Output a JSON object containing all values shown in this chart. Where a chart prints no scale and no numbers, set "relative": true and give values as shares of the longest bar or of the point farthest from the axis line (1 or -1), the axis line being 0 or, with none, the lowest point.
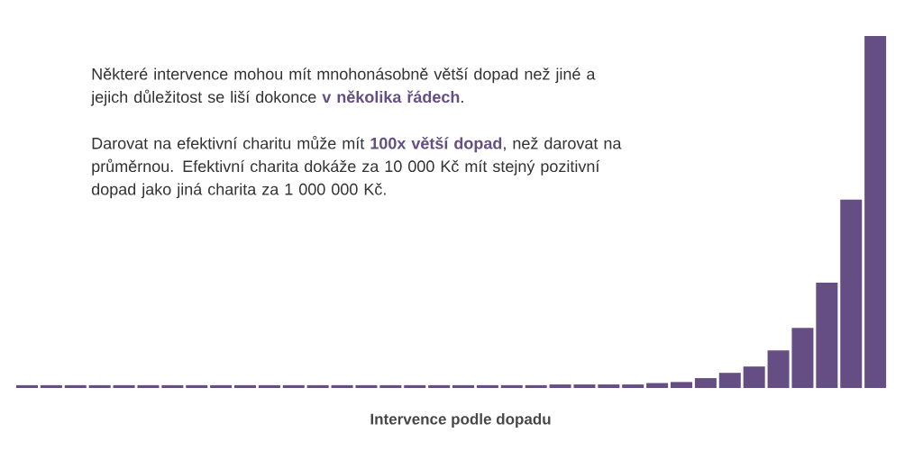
{
  "chart_data": {
    "type": "bar",
    "relative": true,
    "color": "#654e84",
    "xlabel": "Intervence podle dopadu",
    "categories": [
      null,
      null,
      null,
      null,
      null,
      null,
      null,
      null,
      null,
      null,
      null,
      null,
      null,
      null,
      null,
      null,
      null,
      null,
      null,
      null,
      null,
      null,
      null,
      null,
      null,
      null,
      null,
      null,
      null,
      null,
      null,
      null,
      null,
      null,
      null,
      null
    ],
    "values": [
      0.008,
      0.008,
      0.008,
      0.008,
      0.008,
      0.008,
      0.008,
      0.008,
      0.008,
      0.008,
      0.008,
      0.008,
      0.008,
      0.008,
      0.008,
      0.008,
      0.008,
      0.008,
      0.008,
      0.008,
      0.008,
      0.008,
      0.01,
      0.01,
      0.01,
      0.01,
      0.014,
      0.017,
      0.028,
      0.043,
      0.061,
      0.107,
      0.171,
      0.299,
      0.535,
      1
    ],
    "annotations": [
      "Některé intervence mohou mít mnohonásobně větší dopad než jiné a jejich důležitost se liší dokonce **v několika řádech**.",
      "Darovat na efektivní charitu může mít **100x větší dopad**, než darovat na průměrnou. Efektivní charita dokáže za 10 000 Kč mít stejný pozitivní dopad jako jiná charita za 1 000 000 Kč."
    ]
  }
}
